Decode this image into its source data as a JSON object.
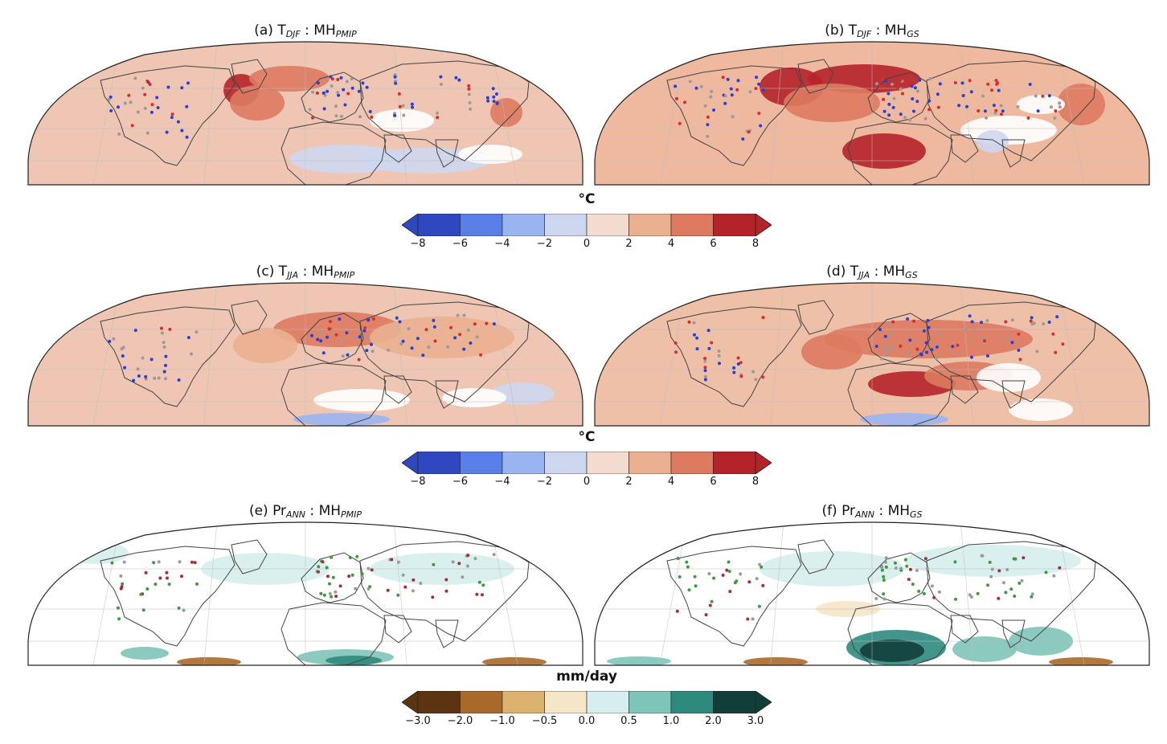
{
  "panels": [
    {
      "letter": "(a)",
      "var": "T",
      "var_sub": "DJF",
      "sep": " : ",
      "exp": "MH",
      "exp_sub": "PMIP",
      "base": "#efc6b3",
      "marker": "#2a3fd8",
      "heat": "#b5232a",
      "mode": "djf_pmip"
    },
    {
      "letter": "(b)",
      "var": "T",
      "var_sub": "DJF",
      "sep": " : ",
      "exp": "MH",
      "exp_sub": "GS",
      "base": "#efb9a0",
      "marker": "#2a3fd8",
      "heat": "#b5232a",
      "mode": "djf_gs"
    },
    {
      "letter": "(c)",
      "var": "T",
      "var_sub": "JJA",
      "sep": " : ",
      "exp": "MH",
      "exp_sub": "PMIP",
      "base": "#efc6b3",
      "marker": "#2a3fd8",
      "heat": "#d96b52",
      "mode": "jja_pmip"
    },
    {
      "letter": "(d)",
      "var": "T",
      "var_sub": "JJA",
      "sep": " : ",
      "exp": "MH",
      "exp_sub": "GS",
      "base": "#efc0a8",
      "marker": "#2a3fd8",
      "heat": "#b5232a",
      "mode": "jja_gs"
    },
    {
      "letter": "(e)",
      "var": "Pr",
      "var_sub": "ANN",
      "sep": " : ",
      "exp": "MH",
      "exp_sub": "PMIP",
      "base": "#ffffff",
      "marker": "#3c9a3c",
      "heat": "#2f7f76",
      "mode": "pr_pmip"
    },
    {
      "letter": "(f)",
      "var": "Pr",
      "var_sub": "ANN",
      "sep": " : ",
      "exp": "MH",
      "exp_sub": "GS",
      "base": "#ffffff",
      "marker": "#3c9a3c",
      "heat": "#103c38",
      "mode": "pr_gs"
    }
  ],
  "colorbars": [
    {
      "unit": "°C",
      "ticks": [
        "−8",
        "−6",
        "−4",
        "−2",
        "0",
        "2",
        "4",
        "6",
        "8"
      ],
      "colors": [
        "#2f48c0",
        "#5b7fe8",
        "#9ab4f2",
        "#cdd7ef",
        "#f3dccf",
        "#eab090",
        "#dd7a60",
        "#b5232a"
      ]
    },
    {
      "unit": "°C",
      "ticks": [
        "−8",
        "−6",
        "−4",
        "−2",
        "0",
        "2",
        "4",
        "6",
        "8"
      ],
      "colors": [
        "#2f48c0",
        "#5b7fe8",
        "#9ab4f2",
        "#cdd7ef",
        "#f3dccf",
        "#eab090",
        "#dd7a60",
        "#b5232a"
      ]
    },
    {
      "unit": "mm/day",
      "ticks": [
        "−3.0",
        "−2.0",
        "−1.0",
        "−0.5",
        "0.0",
        "0.5",
        "1.0",
        "2.0",
        "3.0"
      ],
      "colors": [
        "#5c3510",
        "#a8692a",
        "#dcb26e",
        "#f4e6c6",
        "#d6eeed",
        "#7fc4b8",
        "#2f8a7e",
        "#123e3a"
      ]
    }
  ]
}
